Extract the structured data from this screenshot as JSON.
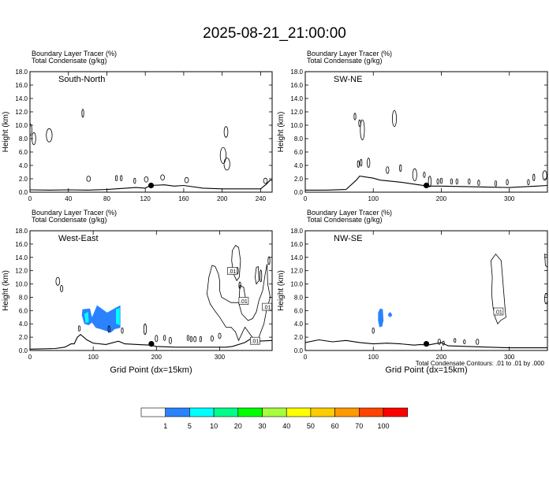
{
  "title": "2025-08-21_21:00:00",
  "panel_header": {
    "line1": "Boundary Layer Tracer   (%)",
    "line2": "Total Condensate   (g/kg)"
  },
  "footer_note": "Total Condensate Contours: .01 to .01 by .000",
  "chart_data": [
    {
      "type": "contour",
      "label": "South-North",
      "ylabel": "Height (km)",
      "xlabel": "",
      "xlim": [
        0,
        252
      ],
      "ylim": [
        0,
        18
      ],
      "xticks": [
        0,
        40,
        80,
        120,
        160,
        200,
        240
      ],
      "yticks": [
        0,
        2,
        4,
        6,
        8,
        10,
        12,
        14,
        16,
        18
      ],
      "terrain": [
        [
          0,
          0.35
        ],
        [
          20,
          0.3
        ],
        [
          40,
          0.35
        ],
        [
          60,
          0.3
        ],
        [
          80,
          0.4
        ],
        [
          100,
          0.6
        ],
        [
          110,
          0.7
        ],
        [
          120,
          0.6
        ],
        [
          125,
          1.0
        ],
        [
          140,
          1.1
        ],
        [
          150,
          0.9
        ],
        [
          160,
          1.0
        ],
        [
          180,
          0.6
        ],
        [
          200,
          0.5
        ],
        [
          220,
          0.5
        ],
        [
          240,
          0.5
        ],
        [
          246,
          1.2
        ],
        [
          250,
          1.8
        ],
        [
          252,
          1.8
        ]
      ],
      "marker": {
        "x": 126,
        "y": 1.0
      },
      "contour_blobs": [
        [
          0,
          9.3,
          2,
          0.9
        ],
        [
          4,
          8.0,
          2,
          0.9
        ],
        [
          20,
          8.5,
          3,
          1.0
        ],
        [
          55,
          11.8,
          1,
          0.6
        ],
        [
          61,
          2.0,
          2,
          0.4
        ],
        [
          90,
          2.1,
          1,
          0.4
        ],
        [
          95,
          2.1,
          1,
          0.4
        ],
        [
          109,
          1.7,
          1,
          0.4
        ],
        [
          121,
          1.9,
          2,
          0.4
        ],
        [
          138,
          2.2,
          2,
          0.4
        ],
        [
          163,
          1.8,
          2,
          0.4
        ],
        [
          204,
          9.0,
          2,
          0.8
        ],
        [
          201,
          5.5,
          3,
          1.2
        ],
        [
          205,
          4.2,
          3,
          0.9
        ],
        [
          245,
          1.7,
          2,
          0.4
        ]
      ]
    },
    {
      "type": "contour",
      "label": "SW-NE",
      "ylabel": "Height (km)",
      "xlabel": "",
      "xlim": [
        0,
        356
      ],
      "ylim": [
        0,
        18
      ],
      "xticks": [
        0,
        100,
        200,
        300
      ],
      "yticks": [
        0,
        2,
        4,
        6,
        8,
        10,
        12,
        14,
        16,
        18
      ],
      "terrain": [
        [
          0,
          0.3
        ],
        [
          30,
          0.3
        ],
        [
          60,
          0.4
        ],
        [
          75,
          1.8
        ],
        [
          80,
          2.4
        ],
        [
          100,
          2.1
        ],
        [
          110,
          1.8
        ],
        [
          120,
          1.7
        ],
        [
          140,
          1.5
        ],
        [
          160,
          1.2
        ],
        [
          180,
          0.9
        ],
        [
          200,
          0.9
        ],
        [
          250,
          0.8
        ],
        [
          300,
          0.7
        ],
        [
          340,
          0.9
        ],
        [
          356,
          1.0
        ]
      ],
      "marker": {
        "x": 178,
        "y": 1.0
      },
      "contour_blobs": [
        [
          73,
          11.3,
          1,
          0.5
        ],
        [
          80,
          10.3,
          1,
          0.5
        ],
        [
          84,
          9.3,
          3,
          1.5
        ],
        [
          131,
          11.0,
          3,
          1.2
        ],
        [
          78,
          4.2,
          1,
          0.5
        ],
        [
          82,
          4.4,
          1,
          0.5
        ],
        [
          93,
          4.4,
          2,
          0.7
        ],
        [
          121,
          3.3,
          2,
          0.5
        ],
        [
          140,
          3.6,
          1,
          0.5
        ],
        [
          161,
          2.6,
          3,
          0.9
        ],
        [
          175,
          2.6,
          1,
          0.4
        ],
        [
          183,
          1.6,
          2,
          0.8
        ],
        [
          195,
          1.6,
          1,
          0.4
        ],
        [
          200,
          1.7,
          1,
          0.4
        ],
        [
          215,
          1.6,
          1,
          0.4
        ],
        [
          223,
          1.6,
          1,
          0.4
        ],
        [
          241,
          1.6,
          1,
          0.4
        ],
        [
          255,
          1.4,
          1,
          0.4
        ],
        [
          280,
          1.3,
          1,
          0.4
        ],
        [
          297,
          1.5,
          1,
          0.4
        ],
        [
          336,
          2.2,
          1,
          0.5
        ],
        [
          352,
          2.5,
          3,
          0.7
        ],
        [
          328,
          1.5,
          1,
          0.4
        ]
      ]
    },
    {
      "type": "contour",
      "label": "West-East",
      "ylabel": "Height (km)",
      "xlabel": "Grid Point (dx=15km)",
      "xlim": [
        0,
        383
      ],
      "ylim": [
        0,
        18
      ],
      "xticks": [
        0,
        100,
        200,
        300
      ],
      "yticks": [
        0,
        2,
        4,
        6,
        8,
        10,
        12,
        14,
        16,
        18
      ],
      "terrain": [
        [
          0,
          0.2
        ],
        [
          40,
          0.3
        ],
        [
          55,
          0.5
        ],
        [
          65,
          1.0
        ],
        [
          70,
          1.0
        ],
        [
          75,
          2.0
        ],
        [
          80,
          2.4
        ],
        [
          90,
          1.6
        ],
        [
          100,
          1.1
        ],
        [
          120,
          0.9
        ],
        [
          140,
          1.4
        ],
        [
          150,
          1.0
        ],
        [
          170,
          0.9
        ],
        [
          190,
          0.8
        ],
        [
          200,
          0.6
        ],
        [
          230,
          0.5
        ],
        [
          260,
          0.5
        ],
        [
          290,
          0.5
        ],
        [
          310,
          0.5
        ],
        [
          320,
          0.6
        ],
        [
          340,
          1.2
        ],
        [
          350,
          1.8
        ],
        [
          360,
          1.4
        ],
        [
          383,
          1.5
        ]
      ],
      "marker": {
        "x": 192,
        "y": 1.0
      },
      "tracer_fill": [
        {
          "level": 1,
          "color": "#2b82ff",
          "polygon": [
            [
              83,
              6.2
            ],
            [
              95,
              6.3
            ],
            [
              98,
              5.0
            ],
            [
              103,
              6.1
            ],
            [
              106,
              6.8
            ],
            [
              122,
              5.7
            ],
            [
              135,
              6.4
            ],
            [
              143,
              6.8
            ],
            [
              143,
              3.4
            ],
            [
              134,
              3.2
            ],
            [
              128,
              2.7
            ],
            [
              112,
              3.2
            ],
            [
              104,
              3.4
            ],
            [
              98,
              4.2
            ],
            [
              93,
              3.8
            ],
            [
              86,
              4.0
            ],
            [
              82,
              5.3
            ]
          ]
        },
        {
          "level": 5,
          "color": "#00ffff",
          "polygon": [
            [
              86,
              5.5
            ],
            [
              92,
              5.8
            ],
            [
              93,
              4.3
            ],
            [
              88,
              4.1
            ]
          ]
        },
        {
          "level": 5,
          "color": "#00ffff",
          "polygon": [
            [
              136,
              6.2
            ],
            [
              142,
              6.4
            ],
            [
              142,
              3.8
            ],
            [
              136,
              4.0
            ]
          ]
        }
      ],
      "contour_blobs": [
        [
          44,
          10.4,
          3,
          0.6
        ],
        [
          50,
          9.3,
          2,
          0.5
        ],
        [
          78,
          3.3,
          1,
          0.4
        ],
        [
          125,
          3.2,
          1,
          0.5
        ],
        [
          146,
          3.0,
          1,
          0.4
        ],
        [
          182,
          3.2,
          2,
          0.8
        ],
        [
          200,
          1.8,
          2,
          0.5
        ],
        [
          213,
          1.9,
          1,
          0.4
        ],
        [
          222,
          1.5,
          2,
          0.5
        ],
        [
          250,
          1.9,
          1,
          0.4
        ],
        [
          255,
          1.7,
          1,
          0.4
        ],
        [
          261,
          1.7,
          2,
          0.4
        ],
        [
          270,
          1.7,
          1,
          0.4
        ],
        [
          288,
          1.8,
          2,
          0.4
        ],
        [
          300,
          2.2,
          2,
          0.4
        ],
        [
          328,
          12.0,
          1,
          0.5
        ],
        [
          332,
          9.8,
          1,
          0.5
        ],
        [
          365,
          11.2,
          1,
          0.9
        ],
        [
          378,
          13.5,
          1,
          0.6
        ]
      ],
      "contour_paths": [
        [
          [
            280,
            8.5
          ],
          [
            283,
            11.0
          ],
          [
            288,
            12.8
          ],
          [
            293,
            12.6
          ],
          [
            298,
            11.5
          ],
          [
            300,
            10.5
          ],
          [
            300,
            9.0
          ],
          [
            303,
            8.0
          ],
          [
            318,
            7.2
          ],
          [
            330,
            7.2
          ],
          [
            335,
            5.5
          ],
          [
            345,
            4.5
          ],
          [
            352,
            4.8
          ],
          [
            358,
            5.8
          ],
          [
            362,
            7.5
          ],
          [
            368,
            9.0
          ],
          [
            372,
            11.5
          ],
          [
            375,
            13.0
          ],
          [
            376,
            10.0
          ],
          [
            380,
            8.0
          ],
          [
            374,
            6.0
          ],
          [
            370,
            4.0
          ],
          [
            362,
            2.0
          ],
          [
            358,
            1.4
          ],
          [
            350,
            2.2
          ],
          [
            340,
            3.5
          ],
          [
            335,
            2.5
          ],
          [
            330,
            1.5
          ],
          [
            325,
            2.8
          ],
          [
            318,
            3.5
          ],
          [
            310,
            3.5
          ],
          [
            300,
            5.0
          ],
          [
            292,
            6.0
          ],
          [
            285,
            7.0
          ],
          [
            280,
            8.5
          ]
        ],
        [
          [
            320,
            15.0
          ],
          [
            325,
            15.8
          ],
          [
            330,
            15.5
          ],
          [
            333,
            13.5
          ],
          [
            331,
            11.0
          ],
          [
            327,
            10.5
          ],
          [
            322,
            11.5
          ],
          [
            319,
            13.5
          ],
          [
            320,
            15.0
          ]
        ],
        [
          [
            332,
            9.8
          ],
          [
            338,
            9.5
          ],
          [
            341,
            7.8
          ],
          [
            337,
            7.0
          ],
          [
            331,
            7.8
          ],
          [
            332,
            9.8
          ]
        ],
        [
          [
            358,
            12.5
          ],
          [
            361,
            12.6
          ],
          [
            362,
            10.5
          ],
          [
            358,
            10.0
          ],
          [
            356,
            11.0
          ],
          [
            358,
            12.5
          ]
        ]
      ],
      "contour_labels": [
        {
          "x": 320,
          "y": 11.9,
          "text": ".01"
        },
        {
          "x": 338,
          "y": 7.4,
          "text": ".01"
        },
        {
          "x": 375,
          "y": 6.5,
          "text": ".01"
        },
        {
          "x": 356,
          "y": 1.4,
          "text": ".01"
        }
      ]
    },
    {
      "type": "contour",
      "label": "NW-SE",
      "ylabel": "Height (km)",
      "xlabel": "Grid Point (dx=15km)",
      "xlim": [
        0,
        356
      ],
      "ylim": [
        0,
        18
      ],
      "xticks": [
        0,
        100,
        200,
        300
      ],
      "yticks": [
        0,
        2,
        4,
        6,
        8,
        10,
        12,
        14,
        16,
        18
      ],
      "terrain": [
        [
          0,
          1.2
        ],
        [
          20,
          1.6
        ],
        [
          40,
          1.3
        ],
        [
          60,
          1.5
        ],
        [
          80,
          1.2
        ],
        [
          100,
          1.0
        ],
        [
          120,
          1.1
        ],
        [
          140,
          1.0
        ],
        [
          160,
          0.8
        ],
        [
          170,
          0.9
        ],
        [
          180,
          0.8
        ],
        [
          200,
          1.2
        ],
        [
          210,
          0.7
        ],
        [
          240,
          0.6
        ],
        [
          270,
          0.5
        ],
        [
          300,
          0.4
        ],
        [
          340,
          0.4
        ],
        [
          356,
          0.4
        ]
      ],
      "marker": {
        "x": 178,
        "y": 1.0
      },
      "tracer_fill": [
        {
          "level": 1,
          "color": "#2b82ff",
          "polygon": [
            [
              107,
              5.7
            ],
            [
              110,
              6.3
            ],
            [
              114,
              6.2
            ],
            [
              115,
              4.5
            ],
            [
              113,
              3.6
            ],
            [
              109,
              3.5
            ],
            [
              107,
              4.5
            ]
          ]
        },
        {
          "level": 1,
          "color": "#2b82ff",
          "polygon": [
            [
              122,
              5.5
            ],
            [
              125,
              5.8
            ],
            [
              128,
              5.3
            ],
            [
              125,
              5.0
            ],
            [
              122,
              5.2
            ]
          ]
        }
      ],
      "contour_blobs": [
        [
          100,
          3.0,
          1,
          0.4
        ],
        [
          197,
          1.3,
          2,
          0.4
        ],
        [
          203,
          1.1,
          1,
          0.3
        ],
        [
          220,
          1.5,
          1,
          0.3
        ],
        [
          234,
          1.3,
          1,
          0.3
        ],
        [
          253,
          1.3,
          2,
          0.4
        ],
        [
          354,
          7.8,
          2,
          0.8
        ]
      ],
      "contour_paths": [
        [
          [
            273,
            13.5
          ],
          [
            280,
            14.5
          ],
          [
            288,
            13.5
          ],
          [
            290,
            11.0
          ],
          [
            292,
            8.5
          ],
          [
            294,
            6.0
          ],
          [
            295,
            5.0
          ],
          [
            287,
            4.5
          ],
          [
            283,
            4.0
          ],
          [
            279,
            5.0
          ],
          [
            276,
            6.5
          ],
          [
            274,
            8.5
          ],
          [
            275,
            11.0
          ],
          [
            273,
            13.5
          ]
        ],
        [
          [
            352,
            14.5
          ],
          [
            356,
            14.3
          ],
          [
            356,
            12.5
          ],
          [
            353,
            12.8
          ],
          [
            352,
            14.5
          ]
        ]
      ],
      "contour_labels": [
        {
          "x": 284,
          "y": 5.8,
          "text": ".01"
        }
      ]
    }
  ],
  "colorbar": {
    "colors": [
      "#ffffff",
      "#2b82ff",
      "#00ffff",
      "#00ff8a",
      "#00ff00",
      "#a6ff3c",
      "#ffff00",
      "#ffcc00",
      "#ff9900",
      "#ff4400",
      "#ff0000"
    ],
    "labels": [
      "1",
      "5",
      "10",
      "20",
      "30",
      "40",
      "50",
      "60",
      "70",
      "100"
    ]
  }
}
